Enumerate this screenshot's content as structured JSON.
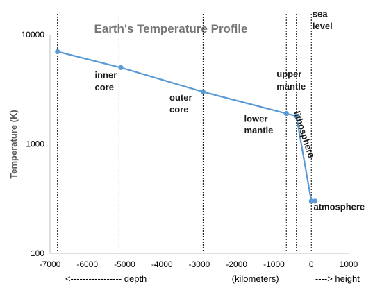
{
  "chart_data": {
    "type": "line",
    "title": "Earth's Temperature Profile",
    "ylabel": "Temperature (K)",
    "x_scale": "linear",
    "y_scale": "log",
    "xlim": [
      -7000,
      1000
    ],
    "ylim": [
      100,
      10000
    ],
    "x_ticks": [
      -7000,
      -6000,
      -5000,
      -4000,
      -3000,
      -2000,
      -1000,
      0,
      1000
    ],
    "x_tick_labels": [
      "-7000",
      "-6000",
      "-5000",
      "-4000",
      "-3000",
      "-2000",
      "-1000",
      "0",
      "1000"
    ],
    "y_ticks": [
      100,
      1000,
      10000
    ],
    "y_tick_labels": [
      "100",
      "1000",
      "10000"
    ],
    "xlabel_parts": [
      {
        "text": "<----------------- depth",
        "x": -5500
      },
      {
        "text": "(kilometers)",
        "x": -1500
      },
      {
        "text": "----> height",
        "x": 700
      }
    ],
    "grid": false,
    "series_color": "#5b9bd5",
    "series": [
      {
        "x": [
          -6800,
          -5100,
          -2900,
          -670,
          -400,
          0,
          100
        ],
        "y": [
          7000,
          5000,
          3000,
          1900,
          1800,
          300,
          300
        ]
      }
    ],
    "vlines": [
      -6800,
      -5150,
      -2900,
      -670,
      -400,
      0
    ],
    "annotations": [
      {
        "text": "inner",
        "x": -5800,
        "y": 4000
      },
      {
        "text": "core",
        "x": -5800,
        "y": 3100
      },
      {
        "text": "outer",
        "x": -3800,
        "y": 2500
      },
      {
        "text": "core",
        "x": -3800,
        "y": 1950
      },
      {
        "text": "lower",
        "x": -1800,
        "y": 1600
      },
      {
        "text": "mantle",
        "x": -1800,
        "y": 1250
      },
      {
        "text": "upper",
        "x": -930,
        "y": 4100
      },
      {
        "text": "mantle",
        "x": -930,
        "y": 3150
      },
      {
        "text": "sea",
        "x": 30,
        "y": 14500
      },
      {
        "text": "level",
        "x": 30,
        "y": 11200
      },
      {
        "text": "lithosphere",
        "x": -270,
        "y": 1200,
        "rotate": 72
      },
      {
        "text": "atmosphere",
        "x": 60,
        "y": 250
      }
    ]
  }
}
